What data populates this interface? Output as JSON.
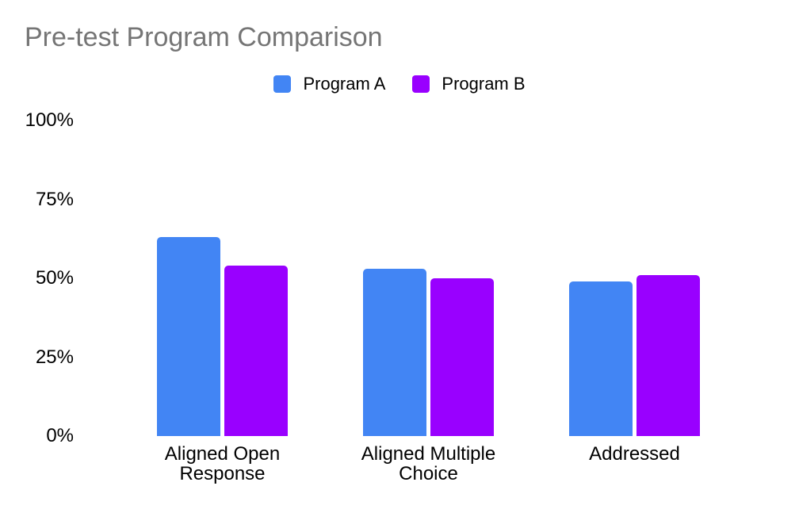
{
  "chart_data": {
    "type": "bar",
    "title": "Pre-test Program Comparison",
    "categories": [
      "Aligned Open Response",
      "Aligned Multiple Choice",
      "Addressed"
    ],
    "series": [
      {
        "name": "Program A",
        "color": "#4285F4",
        "values": [
          63,
          53,
          49
        ]
      },
      {
        "name": "Program B",
        "color": "#9900FF",
        "values": [
          54,
          50,
          51
        ]
      }
    ],
    "xlabel": "",
    "ylabel": "",
    "ylim": [
      0,
      100
    ],
    "yticks": [
      0,
      25,
      50,
      75,
      100
    ],
    "ytick_labels": [
      "0%",
      "25%",
      "50%",
      "75%",
      "100%"
    ],
    "value_format": "percent",
    "grid": false,
    "legend_position": "top"
  },
  "colors": {
    "background": "#FFFFFF",
    "title_text": "#757575",
    "axis_text": "#000000",
    "program_a": "#4285F4",
    "program_b": "#9900FF"
  }
}
